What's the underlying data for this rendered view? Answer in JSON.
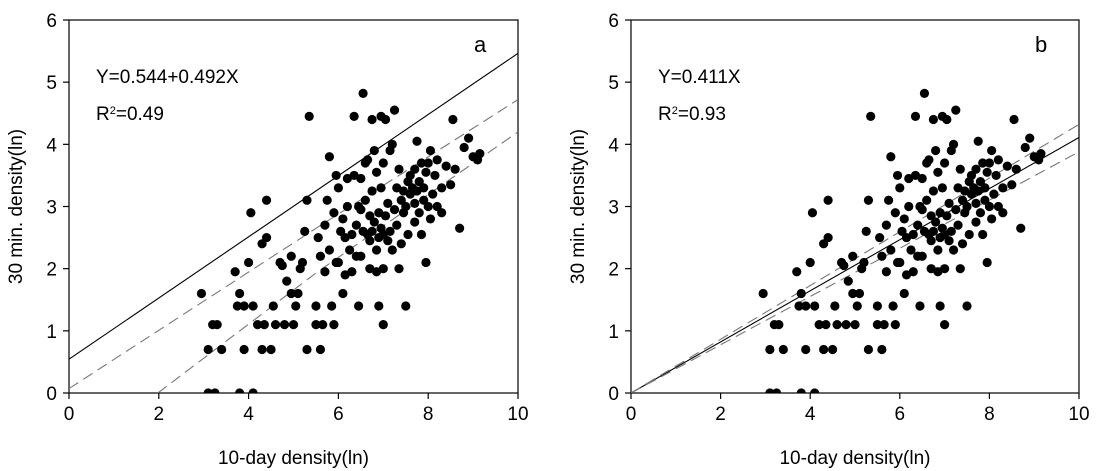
{
  "chart_data": [
    {
      "type": "scatter",
      "panel_label": "a",
      "equation": "Y=0.544+0.492X",
      "r2_prefix": "R",
      "r2_sup": "2",
      "r2_value": "=0.49",
      "xlabel": "10-day density(ln)",
      "ylabel": "30 min. density(ln)",
      "xlim": [
        0,
        10
      ],
      "ylim": [
        0,
        6
      ],
      "xticks": [
        "0",
        "2",
        "4",
        "6",
        "8",
        "10"
      ],
      "yticks": [
        "0",
        "1",
        "2",
        "3",
        "4",
        "5",
        "6"
      ],
      "grid": false,
      "fit": {
        "intercept": 0.544,
        "slope": 0.492
      },
      "ci_lower": [
        [
          1.98,
          0
        ],
        [
          5.5,
          1.93
        ],
        [
          10,
          4.2
        ]
      ],
      "ci_upper": [
        [
          0,
          0.07
        ],
        [
          5.5,
          2.65
        ],
        [
          10,
          4.72
        ]
      ],
      "points": [
        [
          2.95,
          1.6
        ],
        [
          3.1,
          0.7
        ],
        [
          3.2,
          1.1
        ],
        [
          3.3,
          1.1
        ],
        [
          3.4,
          0.7
        ],
        [
          3.1,
          0
        ],
        [
          3.25,
          0
        ],
        [
          3.7,
          1.95
        ],
        [
          3.75,
          1.4
        ],
        [
          3.8,
          1.6
        ],
        [
          3.9,
          1.4
        ],
        [
          4.0,
          2.1
        ],
        [
          4.05,
          2.9
        ],
        [
          4.1,
          1.4
        ],
        [
          3.8,
          0
        ],
        [
          4.1,
          0
        ],
        [
          3.9,
          0.7
        ],
        [
          4.3,
          0.7
        ],
        [
          4.35,
          1.1
        ],
        [
          4.2,
          1.1
        ],
        [
          4.3,
          2.4
        ],
        [
          4.4,
          2.5
        ],
        [
          4.4,
          3.1
        ],
        [
          4.5,
          0.7
        ],
        [
          4.55,
          1.4
        ],
        [
          4.6,
          1.1
        ],
        [
          4.7,
          2.1
        ],
        [
          4.75,
          2.05
        ],
        [
          4.8,
          1.1
        ],
        [
          4.85,
          1.8
        ],
        [
          4.95,
          1.6
        ],
        [
          4.95,
          2.2
        ],
        [
          5.0,
          1.1
        ],
        [
          5.05,
          1.4
        ],
        [
          5.1,
          1.6
        ],
        [
          5.15,
          2.0
        ],
        [
          5.2,
          2.1
        ],
        [
          5.25,
          2.6
        ],
        [
          5.3,
          0.7
        ],
        [
          5.3,
          3.1
        ],
        [
          5.35,
          4.45
        ],
        [
          5.5,
          1.1
        ],
        [
          5.5,
          1.4
        ],
        [
          5.55,
          2.5
        ],
        [
          5.6,
          0.7
        ],
        [
          5.6,
          2.2
        ],
        [
          5.65,
          1.1
        ],
        [
          5.7,
          1.95
        ],
        [
          5.7,
          2.7
        ],
        [
          5.75,
          3.1
        ],
        [
          5.8,
          2.3
        ],
        [
          5.8,
          3.8
        ],
        [
          5.85,
          1.4
        ],
        [
          5.9,
          2.9
        ],
        [
          5.9,
          1.1
        ],
        [
          5.95,
          2.1
        ],
        [
          5.95,
          3.5
        ],
        [
          6.0,
          2.1
        ],
        [
          6.0,
          3.3
        ],
        [
          6.05,
          2.6
        ],
        [
          6.1,
          2.8
        ],
        [
          6.1,
          1.6
        ],
        [
          6.15,
          1.9
        ],
        [
          6.15,
          2.5
        ],
        [
          6.2,
          3.0
        ],
        [
          6.2,
          3.45
        ],
        [
          6.25,
          2.3
        ],
        [
          6.3,
          1.95
        ],
        [
          6.3,
          2.55
        ],
        [
          6.35,
          4.45
        ],
        [
          6.35,
          3.5
        ],
        [
          6.4,
          2.2
        ],
        [
          6.4,
          2.7
        ],
        [
          6.45,
          1.4
        ],
        [
          6.45,
          3.0
        ],
        [
          6.5,
          2.2
        ],
        [
          6.5,
          2.95
        ],
        [
          6.5,
          3.45
        ],
        [
          6.55,
          2.6
        ],
        [
          6.55,
          4.82
        ],
        [
          6.6,
          3.1
        ],
        [
          6.6,
          3.7
        ],
        [
          6.65,
          2.55
        ],
        [
          6.65,
          3.75
        ],
        [
          6.7,
          2.0
        ],
        [
          6.7,
          2.45
        ],
        [
          6.7,
          2.85
        ],
        [
          6.75,
          2.6
        ],
        [
          6.75,
          3.25
        ],
        [
          6.75,
          4.4
        ],
        [
          6.8,
          2.75
        ],
        [
          6.8,
          3.9
        ],
        [
          6.85,
          1.95
        ],
        [
          6.85,
          2.3
        ],
        [
          6.85,
          3.55
        ],
        [
          6.9,
          2.5
        ],
        [
          6.9,
          2.9
        ],
        [
          6.9,
          1.4
        ],
        [
          6.95,
          2.65
        ],
        [
          6.95,
          3.3
        ],
        [
          6.95,
          4.45
        ],
        [
          7.0,
          1.1
        ],
        [
          7.0,
          2.0
        ],
        [
          7.0,
          2.55
        ],
        [
          7.0,
          3.7
        ],
        [
          7.05,
          2.85
        ],
        [
          7.05,
          4.4
        ],
        [
          7.1,
          2.45
        ],
        [
          7.1,
          3.05
        ],
        [
          7.15,
          2.6
        ],
        [
          7.15,
          3.9
        ],
        [
          7.2,
          2.3
        ],
        [
          7.2,
          4.0
        ],
        [
          7.25,
          2.95
        ],
        [
          7.25,
          4.55
        ],
        [
          7.3,
          2.7
        ],
        [
          7.3,
          3.3
        ],
        [
          7.35,
          2.0
        ],
        [
          7.35,
          3.6
        ],
        [
          7.4,
          2.4
        ],
        [
          7.4,
          3.1
        ],
        [
          7.45,
          2.9
        ],
        [
          7.45,
          3.25
        ],
        [
          7.5,
          1.4
        ],
        [
          7.5,
          3.0
        ],
        [
          7.55,
          2.55
        ],
        [
          7.55,
          3.4
        ],
        [
          7.6,
          3.2
        ],
        [
          7.6,
          3.5
        ],
        [
          7.65,
          3.3
        ],
        [
          7.7,
          2.75
        ],
        [
          7.7,
          3.05
        ],
        [
          7.7,
          3.6
        ],
        [
          7.75,
          3.25
        ],
        [
          7.75,
          4.05
        ],
        [
          7.8,
          2.9
        ],
        [
          7.8,
          3.4
        ],
        [
          7.85,
          2.55
        ],
        [
          7.85,
          3.7
        ],
        [
          7.9,
          3.1
        ],
        [
          7.9,
          3.3
        ],
        [
          7.95,
          2.1
        ],
        [
          7.95,
          3.55
        ],
        [
          8.0,
          3.0
        ],
        [
          8.0,
          3.7
        ],
        [
          8.05,
          2.8
        ],
        [
          8.05,
          3.9
        ],
        [
          8.1,
          3.2
        ],
        [
          8.15,
          3.5
        ],
        [
          8.2,
          3.0
        ],
        [
          8.2,
          3.75
        ],
        [
          8.3,
          2.9
        ],
        [
          8.3,
          3.3
        ],
        [
          8.4,
          3.65
        ],
        [
          8.5,
          3.35
        ],
        [
          8.55,
          4.4
        ],
        [
          8.6,
          3.6
        ],
        [
          8.7,
          2.65
        ],
        [
          8.8,
          3.95
        ],
        [
          8.9,
          4.1
        ],
        [
          9.0,
          3.8
        ],
        [
          9.1,
          3.75
        ],
        [
          9.15,
          3.85
        ]
      ]
    },
    {
      "type": "scatter",
      "panel_label": "b",
      "equation": "Y=0.411X",
      "r2_prefix": "R",
      "r2_sup": "2",
      "r2_value": "=0.93",
      "xlabel": "10-day density(ln)",
      "ylabel": "30 min. density(ln)",
      "xlim": [
        0,
        10
      ],
      "ylim": [
        0,
        6
      ],
      "xticks": [
        "0",
        "2",
        "4",
        "6",
        "8",
        "10"
      ],
      "yticks": [
        "0",
        "1",
        "2",
        "3",
        "4",
        "5",
        "6"
      ],
      "grid": false,
      "fit": {
        "intercept": 0,
        "slope": 0.411
      },
      "ci_lower": [
        [
          0,
          0
        ],
        [
          10,
          3.88
        ]
      ],
      "ci_upper": [
        [
          0,
          0
        ],
        [
          10,
          4.32
        ]
      ],
      "points_same_as_panel": 0
    }
  ]
}
